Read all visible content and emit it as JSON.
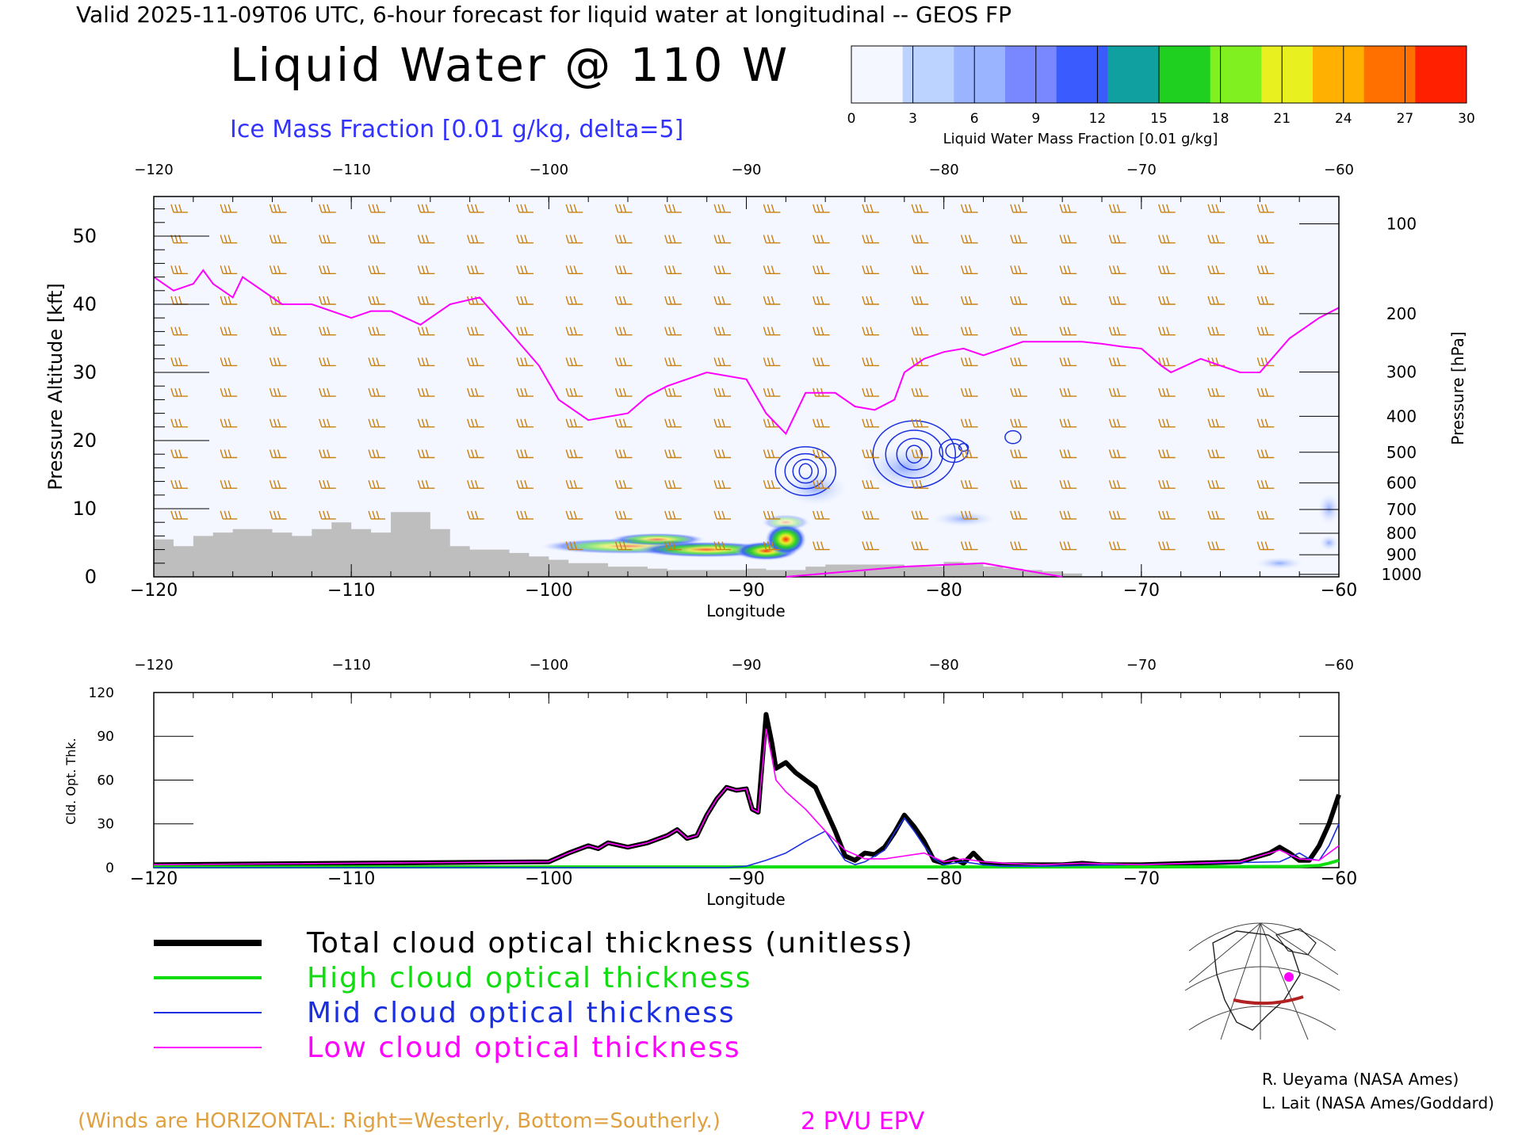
{
  "header": {
    "top_title": "Valid 2025-11-09T06 UTC, 6-hour forecast for liquid water at longitudinal -- GEOS FP",
    "main_title": "Liquid Water @ 110 W",
    "ice_label": "Ice Mass Fraction [0.01 g/kg, delta=5]"
  },
  "colorbar": {
    "ticks": [
      "0",
      "3",
      "6",
      "9",
      "12",
      "15",
      "18",
      "21",
      "24",
      "27",
      "30"
    ],
    "label": "Liquid Water Mass Fraction [0.01 g/kg]",
    "colors": [
      "#f4f7ff",
      "#bcd2ff",
      "#9ab4ff",
      "#7a88ff",
      "#3a5cff",
      "#10a0a0",
      "#20d020",
      "#80f020",
      "#e8f020",
      "#ffb000",
      "#ff7000",
      "#ff2000"
    ]
  },
  "colors": {
    "terrain": "#bebebe",
    "epv_line": "#ff00ff",
    "ice_contour": "#1a30e0",
    "wind_barbs": "#c88010",
    "total": "#000000",
    "high": "#10dd10",
    "mid": "#1a30e0",
    "low": "#ff00ff"
  },
  "chart_data": [
    {
      "type": "heatmap",
      "title": "Liquid Water @ 110 W",
      "xlabel": "Longitude",
      "ylabel": "Pressure Altitude [kft]",
      "ylabel_right": "Pressure [hPa]",
      "xlim": [
        -120,
        -60
      ],
      "ylim": [
        0,
        56
      ],
      "x_ticks": [
        "-120",
        "-110",
        "-100",
        "-90",
        "-80",
        "-70",
        "-60"
      ],
      "y_ticks": [
        "0",
        "10",
        "20",
        "30",
        "40",
        "50"
      ],
      "pressure_ticks": [
        "100",
        "200",
        "300",
        "400",
        "500",
        "600",
        "700",
        "800",
        "900",
        "1000"
      ],
      "terrain": {
        "lon": [
          -120,
          -119,
          -118,
          -117,
          -116,
          -115,
          -114,
          -113,
          -112,
          -111,
          -110,
          -109,
          -108,
          -107,
          -106,
          -105,
          -104,
          -103,
          -102,
          -101,
          -100,
          -99,
          -98,
          -97,
          -96,
          -95,
          -94,
          -93,
          -92,
          -91,
          -90,
          -89,
          -88,
          -87,
          -86,
          -85,
          -84,
          -83,
          -82,
          -81,
          -80,
          -79,
          -78,
          -77,
          -76,
          -75,
          -74
        ],
        "kft": [
          5.5,
          4.5,
          6,
          6.5,
          7,
          7,
          6.5,
          6,
          7,
          8,
          7,
          6.5,
          9.5,
          9.5,
          7,
          4.5,
          4,
          4,
          3.5,
          3,
          2.5,
          2,
          2,
          1.5,
          1.5,
          1.2,
          1,
          1,
          1,
          1,
          1.2,
          1,
          1,
          1.5,
          1.8,
          1.8,
          1.8,
          1.8,
          1.5,
          1.5,
          2.2,
          2,
          1.5,
          1.2,
          1,
          0.8,
          0.5
        ]
      },
      "epv_2pvu": {
        "lon": [
          -120,
          -119,
          -118,
          -117.5,
          -117,
          -116,
          -115.5,
          -115,
          -113.5,
          -112,
          -110,
          -109,
          -108,
          -106.5,
          -105,
          -103.5,
          -102,
          -100.5,
          -99.5,
          -98,
          -96,
          -95,
          -94,
          -92,
          -90,
          -89,
          -88,
          -87,
          -85.5,
          -84.5,
          -83.5,
          -82.5,
          -82,
          -81,
          -80,
          -79,
          -78,
          -76,
          -73,
          -72,
          -71,
          -70,
          -69,
          -68.5,
          -67,
          -66,
          -65,
          -64,
          -62.5,
          -61,
          -60
        ],
        "kft": [
          44,
          42,
          43,
          45,
          43,
          41,
          44,
          43,
          40,
          40,
          38,
          39,
          39,
          37,
          40,
          41,
          36,
          31,
          26,
          23,
          24,
          26.5,
          28,
          30,
          29,
          24,
          21,
          27,
          27,
          25,
          24.5,
          26,
          30,
          32,
          33,
          33.5,
          32.5,
          34.5,
          34.5,
          34.2,
          33.8,
          33.5,
          31,
          30,
          32,
          31,
          30,
          30,
          35,
          38,
          39.5
        ]
      },
      "ice_contours_lon_range": [
        -88,
        -74
      ],
      "liquid_max_units": 30
    },
    {
      "type": "line",
      "xlabel": "Longitude",
      "ylabel": "Cld. Opt. Thk.",
      "xlim": [
        -120,
        -60
      ],
      "ylim": [
        0,
        120
      ],
      "x_ticks": [
        "-120",
        "-110",
        "-100",
        "-90",
        "-80",
        "-70",
        "-60"
      ],
      "y_ticks": [
        "0",
        "30",
        "60",
        "90",
        "120"
      ],
      "series": [
        {
          "name": "Total cloud optical thickness (unitless)",
          "x": [
            -120,
            -100,
            -99,
            -98,
            -97.5,
            -97,
            -96,
            -95,
            -94,
            -93.5,
            -93,
            -92.5,
            -92,
            -91.5,
            -91,
            -90.5,
            -90,
            -89.7,
            -89.4,
            -89,
            -88.7,
            -88.5,
            -88,
            -87.5,
            -87,
            -86.5,
            -86,
            -85.5,
            -85,
            -84.5,
            -84,
            -83.5,
            -83,
            -82.5,
            -82,
            -81.5,
            -81,
            -80.5,
            -80,
            -79.5,
            -79,
            -78.5,
            -78,
            -77,
            -76,
            -75,
            -74,
            -73,
            -72,
            -70,
            -65,
            -64,
            -63.5,
            -63,
            -62.5,
            -62,
            -61.5,
            -61,
            -60.5,
            -60
          ],
          "values": [
            2,
            4,
            10,
            15,
            13,
            17,
            14,
            17,
            22,
            26,
            20,
            22,
            36,
            47,
            55,
            53,
            54,
            40,
            38,
            105,
            85,
            68,
            72,
            65,
            60,
            55,
            40,
            25,
            8,
            5,
            10,
            9,
            14,
            24,
            36,
            28,
            18,
            5,
            3,
            6,
            3,
            10,
            3,
            2,
            2,
            2,
            2,
            3,
            2,
            2,
            4,
            8,
            10,
            14,
            10,
            5,
            5,
            15,
            30,
            50
          ]
        },
        {
          "name": "High cloud optical thickness",
          "x": [
            -120,
            -70,
            -62,
            -61,
            -60.5,
            -60
          ],
          "values": [
            0.5,
            0.5,
            0.8,
            1.5,
            3,
            5
          ]
        },
        {
          "name": "Mid cloud optical thickness",
          "x": [
            -120,
            -91,
            -90,
            -89,
            -88,
            -87,
            -86,
            -85.5,
            -85,
            -84.5,
            -84,
            -83,
            -82.5,
            -82,
            -81.5,
            -81,
            -80.5,
            -80,
            -79,
            -78,
            -77,
            -76,
            -75,
            -63,
            -62,
            -61.5,
            -61,
            -60.5,
            -60
          ],
          "values": [
            0,
            0,
            1,
            5,
            10,
            18,
            25,
            15,
            5,
            2,
            4,
            12,
            24,
            34,
            25,
            15,
            6,
            2,
            4,
            2,
            1,
            1,
            1,
            4,
            10,
            6,
            5,
            15,
            30
          ]
        },
        {
          "name": "Low cloud optical thickness",
          "x": [
            -120,
            -100,
            -99,
            -98,
            -97.5,
            -97,
            -96,
            -95,
            -94,
            -93.5,
            -93,
            -92.5,
            -92,
            -91.5,
            -91,
            -90.5,
            -90,
            -89.7,
            -89.4,
            -89,
            -88.7,
            -88.5,
            -88,
            -87,
            -86,
            -85,
            -84,
            -83,
            -82,
            -81,
            -80,
            -79,
            -78,
            -77,
            -75,
            -73,
            -70,
            -65,
            -64,
            -63,
            -62,
            -61,
            -60.5,
            -60
          ],
          "values": [
            2,
            4,
            10,
            15,
            13,
            17,
            14,
            17,
            22,
            26,
            20,
            22,
            36,
            47,
            55,
            53,
            54,
            40,
            38,
            95,
            75,
            60,
            52,
            40,
            25,
            12,
            6,
            6,
            8,
            10,
            4,
            6,
            4,
            3,
            2,
            3,
            2,
            4,
            8,
            12,
            6,
            5,
            10,
            15
          ]
        }
      ]
    }
  ],
  "legend": [
    {
      "label": "Total cloud optical thickness (unitless)",
      "color": "#000000",
      "width": 8
    },
    {
      "label": "High cloud optical thickness",
      "color": "#10dd10",
      "width": 4
    },
    {
      "label": "Mid cloud optical thickness",
      "color": "#1a30e0",
      "width": 2
    },
    {
      "label": "Low cloud optical thickness",
      "color": "#ff00ff",
      "width": 2
    }
  ],
  "footer": {
    "winds_note": "(Winds are HORIZONTAL: Right=Westerly, Bottom=Southerly.)",
    "pvu_note": "2 PVU EPV",
    "credit1": "R. Ueyama (NASA Ames)",
    "credit2": "L. Lait (NASA Ames/Goddard)"
  }
}
